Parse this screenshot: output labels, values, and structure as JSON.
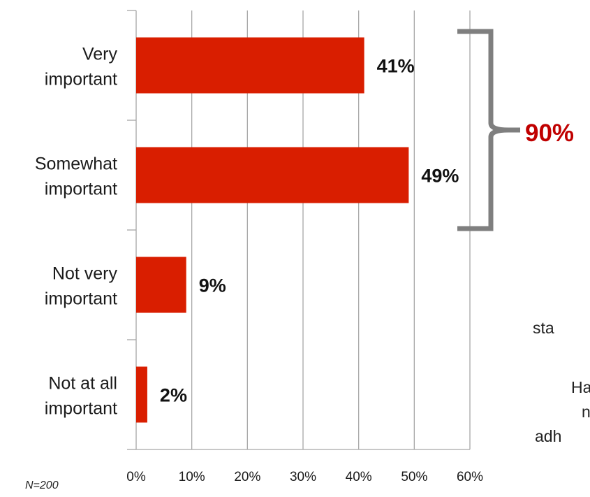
{
  "colors": {
    "bar": "#d91e00",
    "grid": "#a6a6a6",
    "bracket": "#7f7f7f",
    "callout": "#c00000"
  },
  "chart_data": {
    "type": "bar",
    "orientation": "horizontal",
    "categories": [
      [
        "Very",
        "important"
      ],
      [
        "Somewhat",
        "important"
      ],
      [
        "Not very",
        "important"
      ],
      [
        "Not at all",
        "important"
      ]
    ],
    "values": [
      41,
      49,
      9,
      2
    ],
    "data_labels": [
      "41%",
      "49%",
      "9%",
      "2%"
    ],
    "xlim": [
      0,
      60
    ],
    "x_ticks": [
      "0%",
      "10%",
      "20%",
      "30%",
      "40%",
      "50%",
      "60%"
    ],
    "grid": "vertical",
    "annotation": {
      "text": "90%",
      "spans_categories": [
        0,
        1
      ]
    }
  },
  "side_text": [
    "sta",
    "Ha",
    "n",
    "adh"
  ],
  "note": "N=200"
}
